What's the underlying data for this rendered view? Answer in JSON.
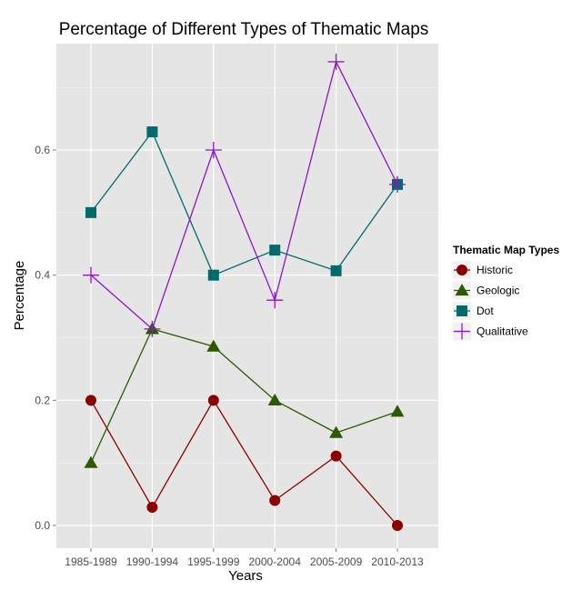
{
  "chart_data": {
    "type": "line",
    "title": "Percentage of Different Types of Thematic Maps",
    "xlabel": "Years",
    "ylabel": "Percentage",
    "categories": [
      "1985-1989",
      "1990-1994",
      "1995-1999",
      "2000-2004",
      "2005-2009",
      "2010-2013"
    ],
    "ylim": [
      -0.04,
      0.78
    ],
    "yticks": [
      0.0,
      0.2,
      0.4,
      0.6
    ],
    "ytick_labels": [
      "0.0",
      "0.2",
      "0.4",
      "0.6"
    ],
    "grid": true,
    "legend": {
      "title": "Thematic Map Types",
      "position": "right"
    },
    "series": [
      {
        "name": "Historic",
        "marker": "circle",
        "color": "#8b0000",
        "values": [
          0.2,
          0.029,
          0.2,
          0.04,
          0.111,
          0.0
        ]
      },
      {
        "name": "Geologic",
        "marker": "triangle",
        "color": "#2d5a00",
        "values": [
          0.1,
          0.314,
          0.286,
          0.2,
          0.148,
          0.182
        ]
      },
      {
        "name": "Dot",
        "marker": "square",
        "color": "#006b6b",
        "values": [
          0.5,
          0.629,
          0.4,
          0.44,
          0.407,
          0.545
        ]
      },
      {
        "name": "Qualitative",
        "marker": "plus",
        "color": "#8e16c8",
        "values": [
          0.4,
          0.314,
          0.6,
          0.36,
          0.741,
          0.545
        ]
      }
    ]
  }
}
